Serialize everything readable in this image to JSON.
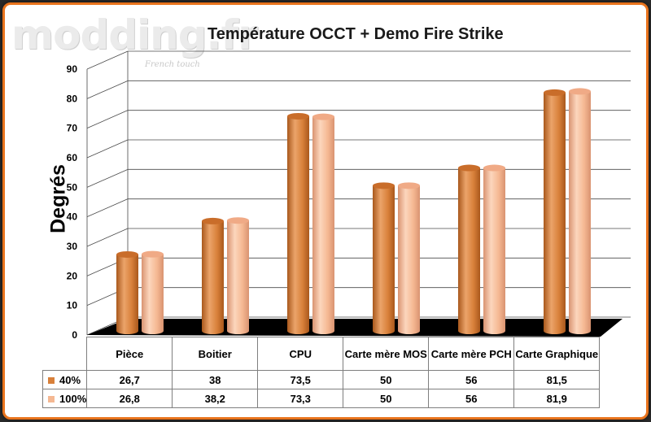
{
  "watermark": {
    "logo_text": "modding.fr",
    "tagline": "French touch"
  },
  "colors": {
    "frame": "#e8731c",
    "series_40": "#d8803a",
    "series_100": "#f5b892",
    "floor": "#000000"
  },
  "chart_data": {
    "type": "bar",
    "title": "Température OCCT + Demo Fire Strike",
    "xlabel": "",
    "ylabel": "Degrés",
    "ylim": [
      0,
      90
    ],
    "yticks": [
      "0",
      "10",
      "20",
      "30",
      "40",
      "50",
      "60",
      "70",
      "80",
      "90"
    ],
    "grid": true,
    "legend": "table",
    "categories": [
      "Pièce",
      "Boitier",
      "CPU",
      "Carte mère MOS",
      "Carte mère PCH",
      "Carte Graphique"
    ],
    "series": [
      {
        "name": "40%",
        "values": [
          26.7,
          38,
          73.5,
          50,
          56,
          81.5
        ],
        "labels": [
          "26,7",
          "38",
          "73,5",
          "50",
          "56",
          "81,5"
        ]
      },
      {
        "name": "100%",
        "values": [
          26.8,
          38.2,
          73.3,
          50,
          56,
          81.9
        ],
        "labels": [
          "26,8",
          "38,2",
          "73,3",
          "50",
          "56",
          "81,9"
        ]
      }
    ]
  }
}
